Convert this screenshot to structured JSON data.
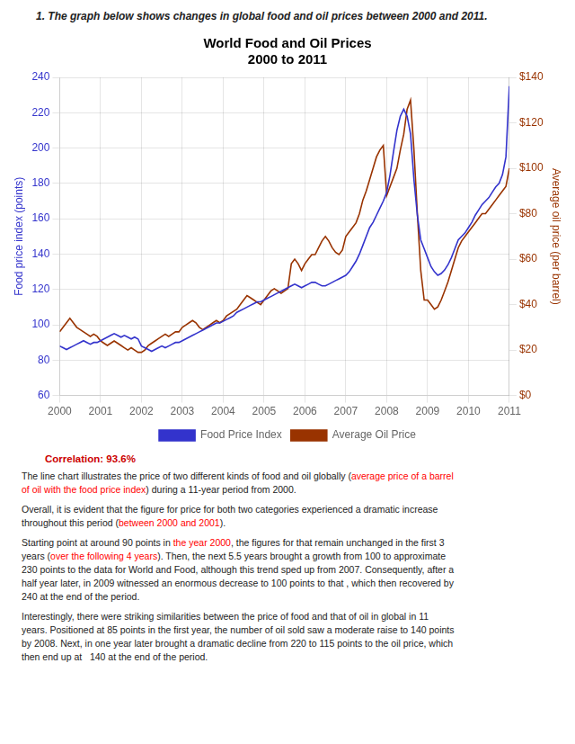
{
  "chart_data": {
    "type": "line",
    "title": "World Food and Oil Prices",
    "subtitle": "2000 to 2011",
    "ylabel": "Food price index (points)",
    "y2label": "Average oil price (per barrel)",
    "xlim": [
      2000,
      2011
    ],
    "xticks": [
      2000,
      2001,
      2002,
      2003,
      2004,
      2005,
      2006,
      2007,
      2008,
      2009,
      2010,
      2011
    ],
    "ylim": [
      60,
      240
    ],
    "yticks": [
      60,
      80,
      100,
      120,
      140,
      160,
      180,
      200,
      220,
      240
    ],
    "y2lim": [
      0,
      140
    ],
    "y2ticks": [
      {
        "value": 0,
        "label": "$0"
      },
      {
        "value": 20,
        "label": "$20"
      },
      {
        "value": 40,
        "label": "$40"
      },
      {
        "value": 60,
        "label": "$60"
      },
      {
        "value": 80,
        "label": "$80"
      },
      {
        "value": 100,
        "label": "$100"
      },
      {
        "value": 120,
        "label": "$120"
      },
      {
        "value": 140,
        "label": "$140"
      }
    ],
    "grid": true,
    "legend": "bottom",
    "x": [
      2000.0,
      2000.083,
      2000.167,
      2000.25,
      2000.333,
      2000.417,
      2000.5,
      2000.583,
      2000.667,
      2000.75,
      2000.833,
      2000.917,
      2001.0,
      2001.083,
      2001.167,
      2001.25,
      2001.333,
      2001.417,
      2001.5,
      2001.583,
      2001.667,
      2001.75,
      2001.833,
      2001.917,
      2002.0,
      2002.083,
      2002.167,
      2002.25,
      2002.333,
      2002.417,
      2002.5,
      2002.583,
      2002.667,
      2002.75,
      2002.833,
      2002.917,
      2003.0,
      2003.083,
      2003.167,
      2003.25,
      2003.333,
      2003.417,
      2003.5,
      2003.583,
      2003.667,
      2003.75,
      2003.833,
      2003.917,
      2004.0,
      2004.083,
      2004.167,
      2004.25,
      2004.333,
      2004.417,
      2004.5,
      2004.583,
      2004.667,
      2004.75,
      2004.833,
      2004.917,
      2005.0,
      2005.083,
      2005.167,
      2005.25,
      2005.333,
      2005.417,
      2005.5,
      2005.583,
      2005.667,
      2005.75,
      2005.833,
      2005.917,
      2006.0,
      2006.083,
      2006.167,
      2006.25,
      2006.333,
      2006.417,
      2006.5,
      2006.583,
      2006.667,
      2006.75,
      2006.833,
      2006.917,
      2007.0,
      2007.083,
      2007.167,
      2007.25,
      2007.333,
      2007.417,
      2007.5,
      2007.583,
      2007.667,
      2007.75,
      2007.833,
      2007.917,
      2008.0,
      2008.083,
      2008.167,
      2008.25,
      2008.333,
      2008.417,
      2008.5,
      2008.583,
      2008.667,
      2008.75,
      2008.833,
      2008.917,
      2009.0,
      2009.083,
      2009.167,
      2009.25,
      2009.333,
      2009.417,
      2009.5,
      2009.583,
      2009.667,
      2009.75,
      2009.833,
      2009.917,
      2010.0,
      2010.083,
      2010.167,
      2010.25,
      2010.333,
      2010.417,
      2010.5,
      2010.583,
      2010.667,
      2010.75,
      2010.833,
      2010.917,
      2011.0
    ],
    "series": [
      {
        "name": "Food Price Index",
        "color": "#3333cc",
        "axis": "y",
        "values": [
          88,
          87,
          86,
          87,
          88,
          89,
          90,
          91,
          90,
          89,
          90,
          90,
          91,
          92,
          93,
          94,
          95,
          94,
          93,
          94,
          93,
          92,
          93,
          92,
          88,
          87,
          86,
          85,
          86,
          87,
          88,
          87,
          88,
          89,
          90,
          90,
          91,
          92,
          93,
          94,
          95,
          96,
          97,
          98,
          99,
          100,
          101,
          101,
          102,
          103,
          104,
          105,
          107,
          108,
          109,
          110,
          111,
          112,
          113,
          113,
          114,
          115,
          116,
          117,
          118,
          119,
          120,
          121,
          122,
          123,
          122,
          121,
          122,
          123,
          124,
          124,
          123,
          122,
          122,
          123,
          124,
          125,
          126,
          127,
          128,
          130,
          133,
          136,
          140,
          145,
          150,
          155,
          158,
          162,
          166,
          170,
          175,
          185,
          198,
          210,
          218,
          222,
          218,
          208,
          182,
          162,
          148,
          143,
          138,
          133,
          130,
          128,
          129,
          131,
          134,
          138,
          143,
          148,
          150,
          152,
          155,
          158,
          162,
          165,
          168,
          170,
          172,
          175,
          178,
          180,
          185,
          195,
          235
        ]
      },
      {
        "name": "Average Oil Price",
        "color": "#993300",
        "axis": "y2",
        "values": [
          28,
          30,
          32,
          34,
          32,
          30,
          29,
          28,
          27,
          26,
          27,
          26,
          24,
          23,
          22,
          23,
          24,
          23,
          22,
          21,
          20,
          21,
          20,
          19,
          19,
          20,
          22,
          23,
          24,
          25,
          26,
          27,
          26,
          27,
          28,
          28,
          30,
          31,
          32,
          33,
          32,
          30,
          29,
          30,
          31,
          32,
          33,
          32,
          33,
          35,
          36,
          37,
          38,
          40,
          42,
          44,
          43,
          42,
          41,
          40,
          42,
          44,
          46,
          47,
          46,
          45,
          46,
          47,
          58,
          60,
          58,
          55,
          58,
          60,
          62,
          62,
          65,
          68,
          70,
          68,
          65,
          63,
          62,
          64,
          70,
          72,
          74,
          76,
          80,
          86,
          90,
          95,
          100,
          105,
          108,
          110,
          88,
          92,
          96,
          100,
          108,
          115,
          126,
          130,
          108,
          80,
          55,
          42,
          42,
          40,
          38,
          39,
          42,
          46,
          50,
          55,
          60,
          65,
          68,
          70,
          72,
          74,
          76,
          78,
          80,
          80,
          82,
          84,
          86,
          88,
          90,
          92,
          100
        ]
      }
    ],
    "annotations": [
      [
        [
          {
            "text": "1.  The graph below shows changes in global food and oil prices between 2000 and 2011."
          }
        ]
      ],
      [
        [
          {
            "text": "Correlation: 93.6%",
            "color": "#cc0000"
          }
        ]
      ],
      [
        [
          {
            "text": "The line chart illustrates the price of two different kinds of food and oil globally ("
          },
          {
            "text": "average price of a barrel",
            "color": "red"
          }
        ],
        [
          {
            "text": "of oil with the food price index",
            "color": "red"
          },
          {
            "text": ") during a 11-year period from 2000."
          }
        ]
      ],
      [
        [
          {
            "text": "Overall, it is evident that the figure for price for both two categories experienced a dramatic increase"
          }
        ],
        [
          {
            "text": "throughout this period ("
          },
          {
            "text": "between 2000 and 2001",
            "color": "red"
          },
          {
            "text": ")."
          }
        ]
      ],
      [
        [
          {
            "text": "Starting point at around 90 points in "
          },
          {
            "text": "the year 2000",
            "color": "red"
          },
          {
            "text": ", the figures for that remain unchanged in the first 3"
          }
        ],
        [
          {
            "text": "years ("
          },
          {
            "text": "over the following 4 years",
            "color": "red"
          },
          {
            "text": "). Then, the next 5.5 years brought a growth from 100 to approximate"
          }
        ],
        [
          {
            "text": "230 points to the data for World and Food, although this trend sped up from 2007. Consequently, after a"
          }
        ],
        [
          {
            "text": "half year later, in 2009 witnessed an enormous decrease to 100 points to that , which then recovered by"
          }
        ],
        [
          {
            "text": "240 at the end of the period."
          }
        ]
      ],
      [
        [
          {
            "text": "Interestingly, there were striking similarities between the price of food and that of oil in global in 11"
          }
        ],
        [
          {
            "text": "years. Positioned at 85 points in the first year, the number of oil sold saw a moderate raise to 140 points"
          }
        ],
        [
          {
            "text": "by 2008. Next, in one year later brought a dramatic decline from 220 to 115 points to the oil price, which"
          }
        ],
        [
          {
            "text": "then end up at   140 at the end of the period."
          }
        ]
      ]
    ]
  }
}
